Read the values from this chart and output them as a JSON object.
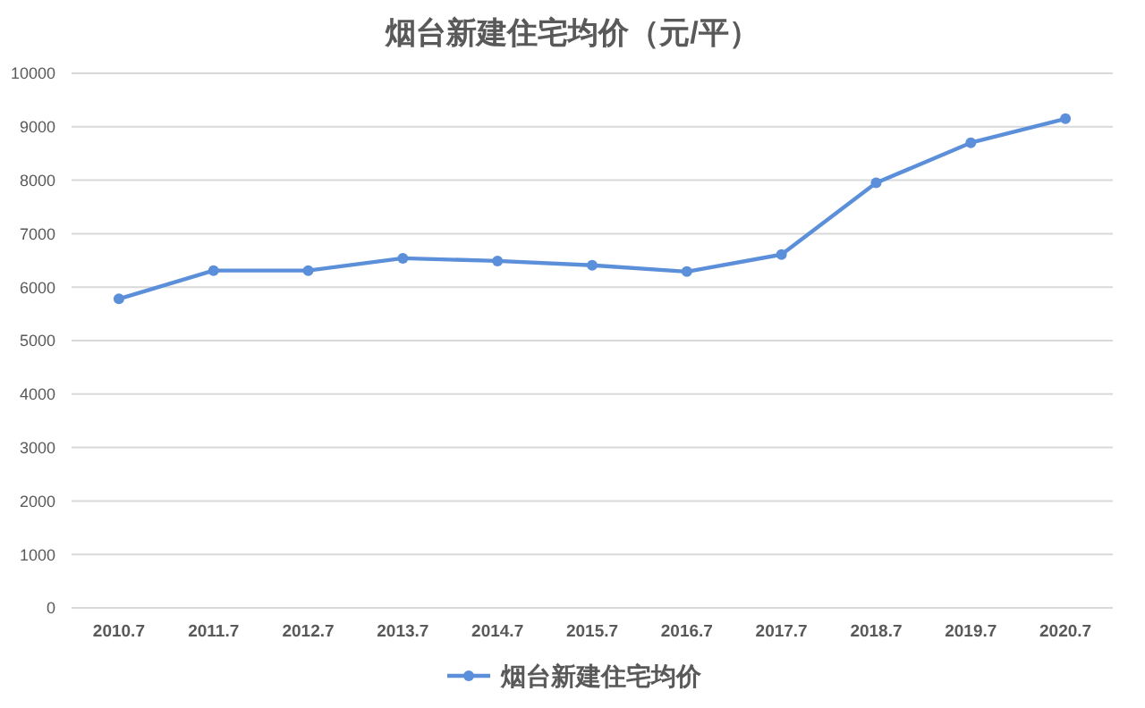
{
  "chart_data": {
    "type": "line",
    "title": "烟台新建住宅均价（元/平）",
    "categories": [
      "2010.7",
      "2011.7",
      "2012.7",
      "2013.7",
      "2014.7",
      "2015.7",
      "2016.7",
      "2017.7",
      "2018.7",
      "2019.7",
      "2020.7"
    ],
    "series": [
      {
        "name": "烟台新建住宅均价",
        "color": "#5b8fd9",
        "values": [
          5780,
          6310,
          6310,
          6540,
          6490,
          6410,
          6290,
          6610,
          7950,
          8700,
          9150
        ]
      }
    ],
    "ylim": [
      0,
      10000
    ],
    "yticks": [
      0,
      1000,
      2000,
      3000,
      4000,
      5000,
      6000,
      7000,
      8000,
      9000,
      10000
    ],
    "grid": "y",
    "legend": "bottom",
    "marker": "circle"
  }
}
